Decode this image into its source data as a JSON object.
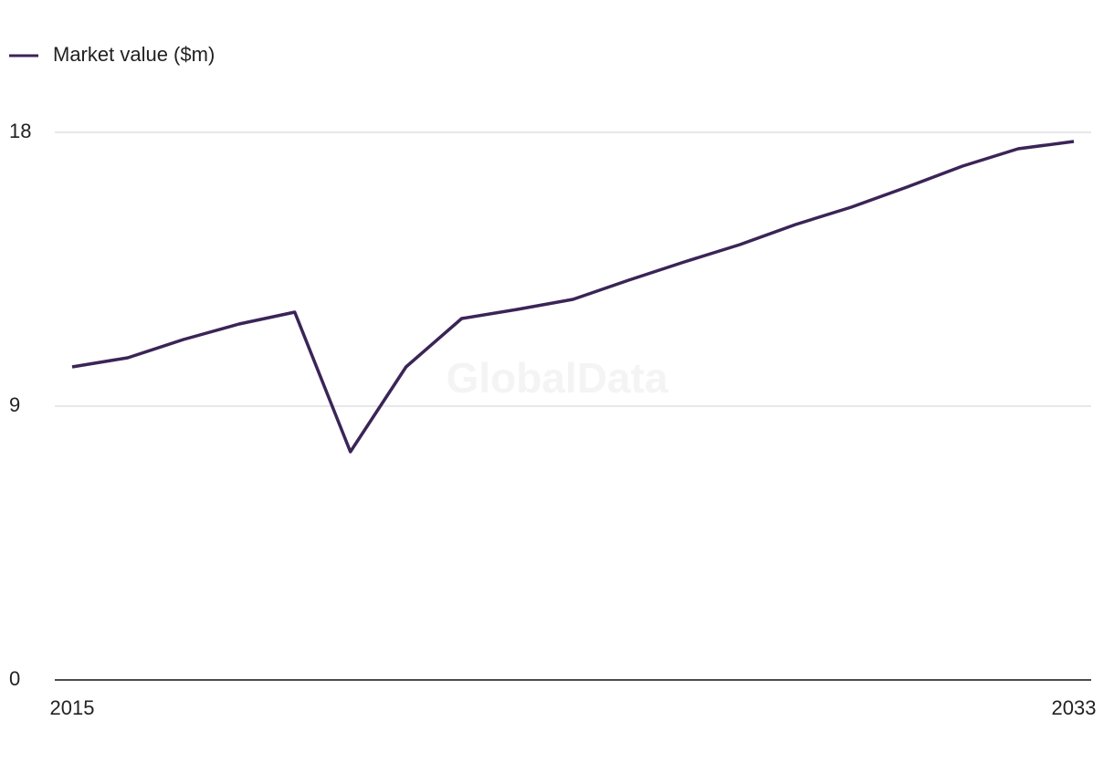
{
  "chart_data": {
    "type": "line",
    "watermark": "GlobalData",
    "x": [
      2015,
      2016,
      2017,
      2018,
      2019,
      2020,
      2021,
      2022,
      2023,
      2024,
      2025,
      2026,
      2027,
      2028,
      2029,
      2030,
      2031,
      2032,
      2033
    ],
    "series": [
      {
        "name": "Market value ($m)",
        "color": "#3b2457",
        "values": [
          10.29,
          10.59,
          11.19,
          11.7,
          12.09,
          7.5,
          10.29,
          11.88,
          12.18,
          12.51,
          13.14,
          13.74,
          14.31,
          14.97,
          15.54,
          16.2,
          16.89,
          17.46,
          17.7
        ]
      }
    ],
    "xlim": [
      2015,
      2033
    ],
    "xticks": [
      2015,
      2033
    ],
    "ylim": [
      0,
      18
    ],
    "yticks": [
      0,
      9,
      18
    ],
    "grid": true,
    "legend": "top-left"
  }
}
